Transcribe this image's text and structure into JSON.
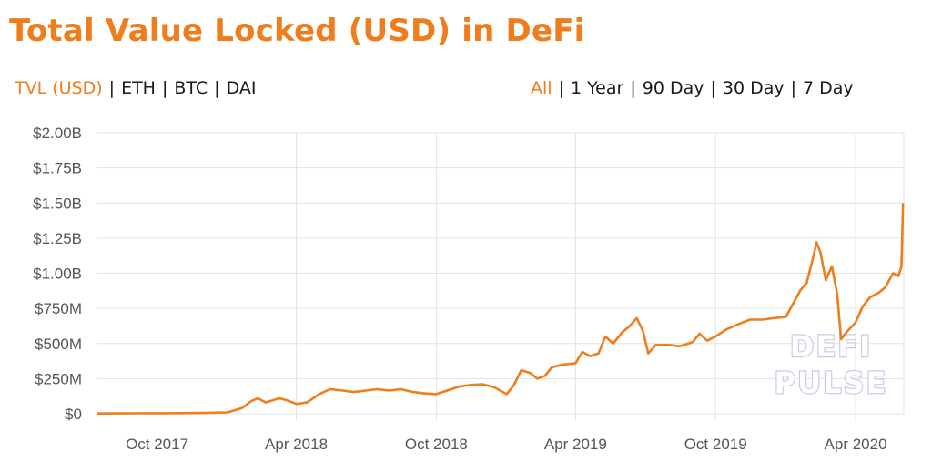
{
  "title": "Total Value Locked (USD) in DeFi",
  "metric_options": [
    "TVL (USD)",
    "ETH",
    "BTC",
    "DAI"
  ],
  "metric_selected": "TVL (USD)",
  "range_options": [
    "All",
    "1 Year",
    "90 Day",
    "30 Day",
    "7 Day"
  ],
  "range_selected": "All",
  "watermark": [
    "DEFI",
    "PULSE"
  ],
  "colors": {
    "accent": "#f07d1c",
    "grid": "#e3e3e3",
    "tick_text": "#555555"
  },
  "chart_data": {
    "type": "line",
    "xlabel": "",
    "ylabel": "",
    "grid": true,
    "ylim": [
      0,
      2000000000
    ],
    "xlim": [
      "2017-07-15",
      "2020-06-03"
    ],
    "y_ticks": [
      {
        "value": 0,
        "label": "$0"
      },
      {
        "value": 250000000,
        "label": "$250M"
      },
      {
        "value": 500000000,
        "label": "$500M"
      },
      {
        "value": 750000000,
        "label": "$750M"
      },
      {
        "value": 1000000000,
        "label": "$1.00B"
      },
      {
        "value": 1250000000,
        "label": "$1.25B"
      },
      {
        "value": 1500000000,
        "label": "$1.50B"
      },
      {
        "value": 1750000000,
        "label": "$1.75B"
      },
      {
        "value": 2000000000,
        "label": "$2.00B"
      }
    ],
    "x_ticks": [
      {
        "date": "2017-10-01",
        "label": "Oct 2017"
      },
      {
        "date": "2018-04-01",
        "label": "Apr 2018"
      },
      {
        "date": "2018-10-01",
        "label": "Oct 2018"
      },
      {
        "date": "2019-04-01",
        "label": "Apr 2019"
      },
      {
        "date": "2019-10-01",
        "label": "Oct 2019"
      },
      {
        "date": "2020-04-01",
        "label": "Apr 2020"
      }
    ],
    "series": [
      {
        "color": "#f07d1c",
        "points": [
          [
            "2017-07-15",
            2000000
          ],
          [
            "2017-09-01",
            3000000
          ],
          [
            "2017-10-15",
            4000000
          ],
          [
            "2017-12-01",
            6000000
          ],
          [
            "2018-01-01",
            10000000
          ],
          [
            "2018-01-20",
            40000000
          ],
          [
            "2018-02-01",
            90000000
          ],
          [
            "2018-02-10",
            110000000
          ],
          [
            "2018-02-20",
            80000000
          ],
          [
            "2018-03-01",
            95000000
          ],
          [
            "2018-03-10",
            110000000
          ],
          [
            "2018-03-20",
            95000000
          ],
          [
            "2018-04-01",
            70000000
          ],
          [
            "2018-04-15",
            80000000
          ],
          [
            "2018-05-01",
            140000000
          ],
          [
            "2018-05-15",
            175000000
          ],
          [
            "2018-06-01",
            165000000
          ],
          [
            "2018-06-15",
            155000000
          ],
          [
            "2018-07-01",
            165000000
          ],
          [
            "2018-07-15",
            175000000
          ],
          [
            "2018-08-01",
            165000000
          ],
          [
            "2018-08-15",
            175000000
          ],
          [
            "2018-09-01",
            155000000
          ],
          [
            "2018-09-15",
            145000000
          ],
          [
            "2018-10-01",
            140000000
          ],
          [
            "2018-10-15",
            165000000
          ],
          [
            "2018-11-01",
            195000000
          ],
          [
            "2018-11-15",
            205000000
          ],
          [
            "2018-12-01",
            210000000
          ],
          [
            "2018-12-15",
            190000000
          ],
          [
            "2019-01-01",
            140000000
          ],
          [
            "2019-01-10",
            200000000
          ],
          [
            "2019-01-20",
            310000000
          ],
          [
            "2019-02-01",
            290000000
          ],
          [
            "2019-02-10",
            250000000
          ],
          [
            "2019-02-20",
            270000000
          ],
          [
            "2019-03-01",
            330000000
          ],
          [
            "2019-03-15",
            350000000
          ],
          [
            "2019-04-01",
            360000000
          ],
          [
            "2019-04-10",
            440000000
          ],
          [
            "2019-04-20",
            410000000
          ],
          [
            "2019-05-01",
            430000000
          ],
          [
            "2019-05-10",
            550000000
          ],
          [
            "2019-05-20",
            500000000
          ],
          [
            "2019-06-01",
            580000000
          ],
          [
            "2019-06-10",
            620000000
          ],
          [
            "2019-06-20",
            680000000
          ],
          [
            "2019-06-28",
            590000000
          ],
          [
            "2019-07-05",
            430000000
          ],
          [
            "2019-07-15",
            490000000
          ],
          [
            "2019-08-01",
            490000000
          ],
          [
            "2019-08-15",
            480000000
          ],
          [
            "2019-09-01",
            510000000
          ],
          [
            "2019-09-10",
            570000000
          ],
          [
            "2019-09-20",
            520000000
          ],
          [
            "2019-10-01",
            550000000
          ],
          [
            "2019-10-15",
            600000000
          ],
          [
            "2019-11-01",
            640000000
          ],
          [
            "2019-11-15",
            670000000
          ],
          [
            "2019-12-01",
            670000000
          ],
          [
            "2019-12-15",
            680000000
          ],
          [
            "2020-01-01",
            690000000
          ],
          [
            "2020-01-10",
            780000000
          ],
          [
            "2020-01-20",
            880000000
          ],
          [
            "2020-01-28",
            930000000
          ],
          [
            "2020-02-05",
            1100000000
          ],
          [
            "2020-02-10",
            1220000000
          ],
          [
            "2020-02-15",
            1150000000
          ],
          [
            "2020-02-22",
            950000000
          ],
          [
            "2020-03-01",
            1050000000
          ],
          [
            "2020-03-08",
            850000000
          ],
          [
            "2020-03-13",
            530000000
          ],
          [
            "2020-03-20",
            580000000
          ],
          [
            "2020-04-01",
            650000000
          ],
          [
            "2020-04-10",
            760000000
          ],
          [
            "2020-04-20",
            830000000
          ],
          [
            "2020-05-01",
            860000000
          ],
          [
            "2020-05-10",
            900000000
          ],
          [
            "2020-05-20",
            1000000000
          ],
          [
            "2020-05-27",
            980000000
          ],
          [
            "2020-05-31",
            1050000000
          ],
          [
            "2020-06-02",
            1500000000
          ]
        ]
      }
    ]
  }
}
